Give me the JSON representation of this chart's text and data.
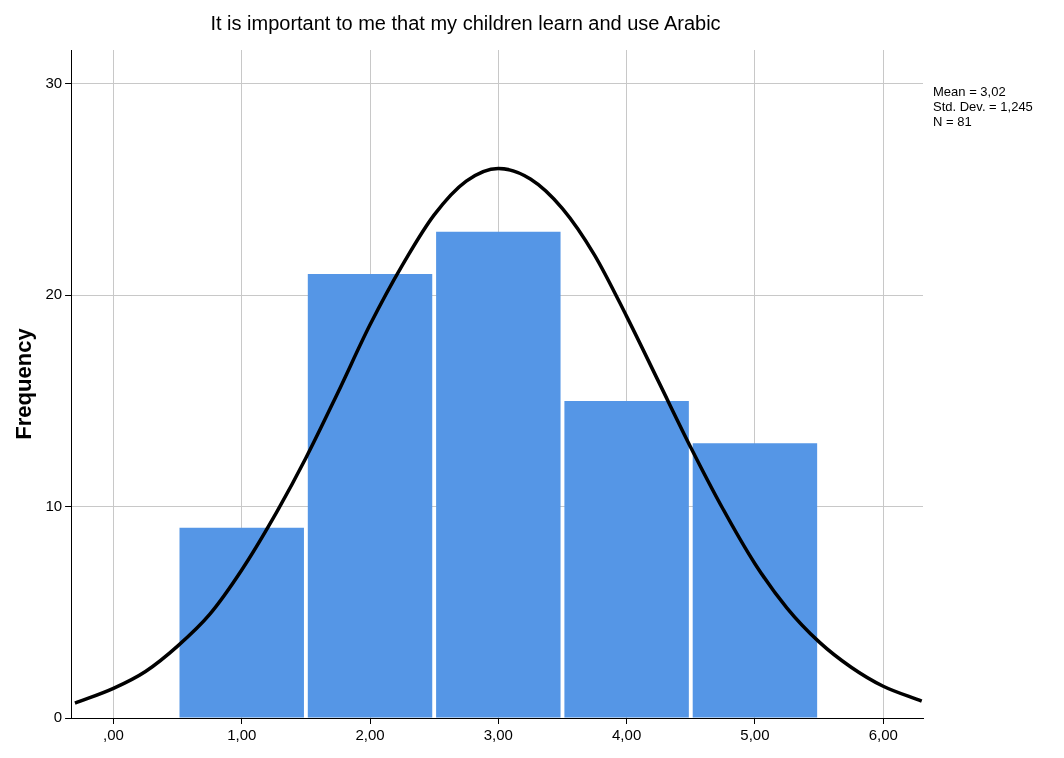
{
  "chart_data": {
    "type": "histogram",
    "title": "It is important to me that my children learn and use Arabic",
    "ylabel": "Frequency",
    "bins": [
      0.5,
      1.5,
      2.5,
      3.5,
      4.5,
      5.5
    ],
    "values": [
      9,
      21,
      23,
      15,
      13
    ],
    "color": "#5596e6",
    "series": [
      {
        "type": "line",
        "color": "#000000",
        "x": [
          -0.3,
          0,
          0.25,
          0.5,
          0.75,
          1,
          1.25,
          1.5,
          1.75,
          2,
          2.25,
          2.5,
          2.75,
          3,
          3.25,
          3.5,
          3.75,
          4,
          4.25,
          4.5,
          4.75,
          5,
          5.25,
          5.5,
          5.75,
          6,
          6.3
        ],
        "values": [
          0.7,
          1.4,
          2.2,
          3.4,
          4.9,
          7.0,
          9.5,
          12.3,
          15.4,
          18.6,
          21.4,
          23.8,
          25.4,
          26.0,
          25.5,
          24.1,
          21.9,
          19.0,
          15.9,
          12.8,
          9.9,
          7.3,
          5.2,
          3.6,
          2.4,
          1.5,
          0.8
        ]
      }
    ],
    "xlim": [
      -0.33,
      6.31
    ],
    "xticks": [
      {
        "value": 0,
        "label": ",00"
      },
      {
        "value": 1,
        "label": "1,00"
      },
      {
        "value": 2,
        "label": "2,00"
      },
      {
        "value": 3,
        "label": "3,00"
      },
      {
        "value": 4,
        "label": "4,00"
      },
      {
        "value": 5,
        "label": "5,00"
      },
      {
        "value": 6,
        "label": "6,00"
      }
    ],
    "ylim": [
      0,
      31.6
    ],
    "yticks": [
      0,
      10,
      20,
      30
    ],
    "grid": true,
    "legend": false,
    "marker": "none",
    "line_style": "solid",
    "annotations": [
      "Mean = 3,02",
      "Std. Dev. = 1,245",
      "N = 81"
    ]
  }
}
